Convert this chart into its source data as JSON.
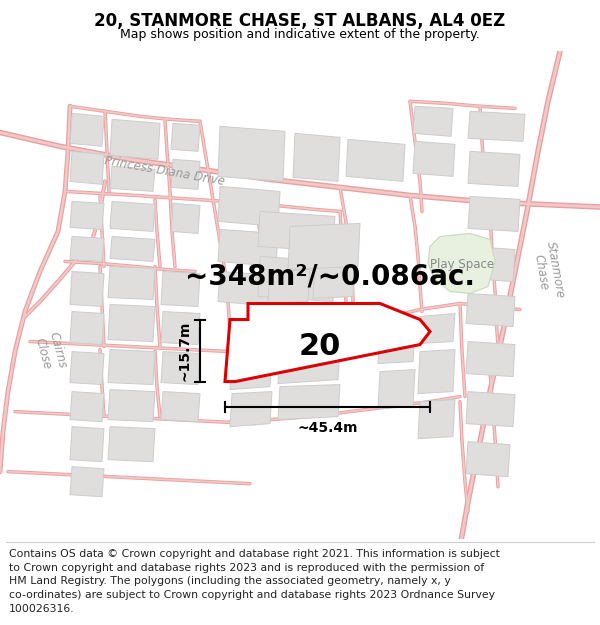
{
  "title": "20, STANMORE CHASE, ST ALBANS, AL4 0EZ",
  "subtitle": "Map shows position and indicative extent of the property.",
  "footer": "Contains OS data © Crown copyright and database right 2021. This information is subject\nto Crown copyright and database rights 2023 and is reproduced with the permission of\nHM Land Registry. The polygons (including the associated geometry, namely x, y\nco-ordinates) are subject to Crown copyright and database rights 2023 Ordnance Survey\n100026316.",
  "area_label": "~348m²/~0.086ac.",
  "label_20": "20",
  "dim_width": "~45.4m",
  "dim_height": "~15.7m",
  "play_space_label": "Play Space",
  "map_bg": "#f7f6f4",
  "road_color": "#f2c8c8",
  "road_edge_color": "#e8a0a0",
  "building_color": "#e0dedd",
  "building_edge": "#cccccc",
  "highlight_fill": "#ffffff",
  "highlight_edge": "#dd0000",
  "highlight_lw": 2.2,
  "play_space_color": "#e8f0e0",
  "play_space_edge": "#c8d8b8",
  "title_fontsize": 12,
  "subtitle_fontsize": 9,
  "footer_fontsize": 7.8,
  "area_fontsize": 20,
  "label_fontsize": 22,
  "street_fontsize": 8.5,
  "play_fontsize": 8.5
}
